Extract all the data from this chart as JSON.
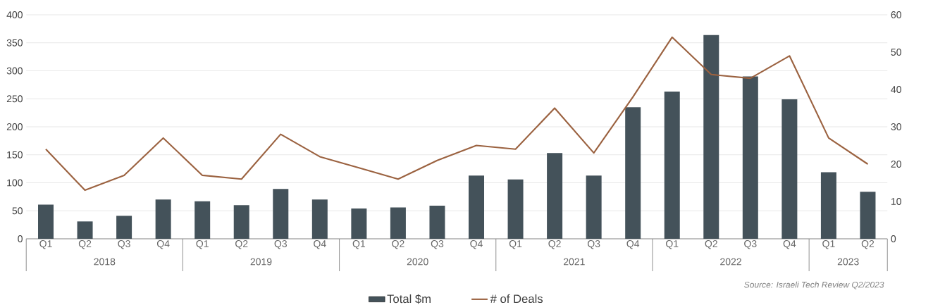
{
  "chart_data": {
    "type": "bar",
    "categories": [
      "Q1",
      "Q2",
      "Q3",
      "Q4",
      "Q1",
      "Q2",
      "Q3",
      "Q4",
      "Q1",
      "Q2",
      "Q3",
      "Q4",
      "Q1",
      "Q2",
      "Q3",
      "Q4",
      "Q1",
      "Q2",
      "Q3",
      "Q4",
      "Q1",
      "Q2"
    ],
    "series": [
      {
        "name": "Total $m",
        "color": "#44525a",
        "values": [
          61,
          31,
          41,
          70,
          67,
          60,
          89,
          70,
          54,
          56,
          59,
          113,
          106,
          153,
          113,
          235,
          263,
          364,
          290,
          249,
          119,
          84
        ]
      },
      {
        "name": "# of Deals",
        "type": "line",
        "axis": "y2",
        "color": "#9b6240",
        "values": [
          24,
          13,
          17,
          27,
          17,
          16,
          28,
          22,
          19,
          16,
          21,
          25,
          24,
          35,
          23,
          38,
          54,
          44,
          43,
          49,
          27,
          20
        ]
      }
    ],
    "ylim": [
      0,
      400
    ],
    "yticks": [
      0,
      50,
      100,
      150,
      200,
      250,
      300,
      350,
      400
    ],
    "y2lim": [
      0,
      60
    ],
    "y2ticks": [
      0,
      10,
      20,
      30,
      40,
      50,
      60
    ],
    "grid": "y",
    "legend": "bottom",
    "marker": "none",
    "line_style": "solid",
    "annotations": [
      "2018",
      "2019",
      "2020",
      "2021",
      "2022",
      "2023",
      "Source: Israeli Tech Review Q2/2023"
    ]
  }
}
